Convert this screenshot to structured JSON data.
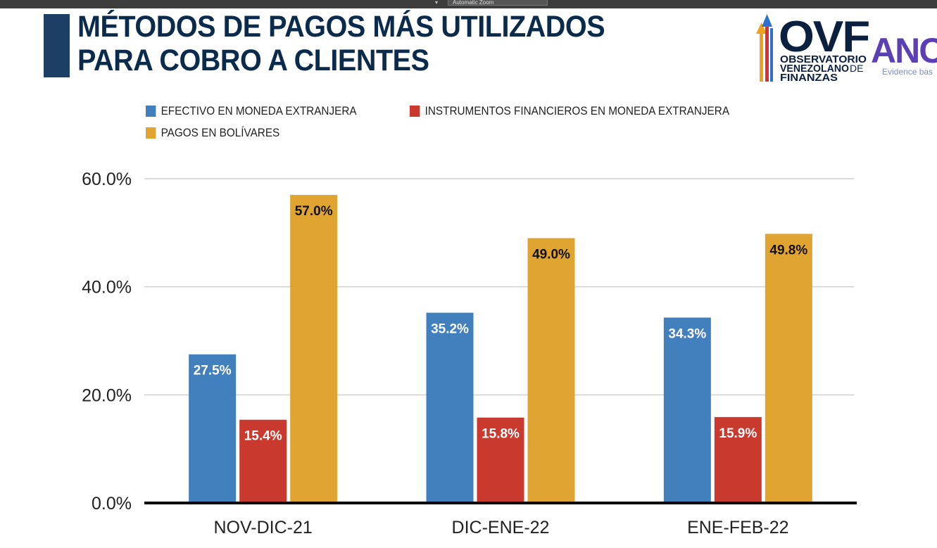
{
  "toolbar": {
    "zoom_label": "Automatic Zoom"
  },
  "header": {
    "title_line1": "MÉTODOS DE PAGOS MÁS UTILIZADOS",
    "title_line2": "PARA COBRO A CLIENTES"
  },
  "logo": {
    "ovf_text": "OVF",
    "line1": "OBSERVATORIO",
    "line2": "VENEZOLANO",
    "line2_suffix": "DE",
    "line3": "FINANZAS",
    "partner_text": "ANC",
    "partner_tagline": "Evidence bas",
    "colors": {
      "navy": "#0b1f3f",
      "blue": "#2f6fd0",
      "orange": "#f0a020",
      "red": "#d83030",
      "purple": "#5b3fb5",
      "gray": "#7a90c0"
    }
  },
  "chart_data": {
    "type": "bar",
    "categories": [
      "NOV-DIC-21",
      "DIC-ENE-22",
      "ENE-FEB-22"
    ],
    "series": [
      {
        "name": "EFECTIVO EN MONEDA EXTRANJERA",
        "color": "#4180bd",
        "values": [
          27.5,
          35.2,
          34.3
        ],
        "labels": [
          "27.5%",
          "35.2%",
          "34.3%"
        ],
        "label_color": "#ffffff"
      },
      {
        "name": "INSTRUMENTOS FINANCIEROS EN MONEDA EXTRANJERA",
        "color": "#c9392e",
        "values": [
          15.4,
          15.8,
          15.9
        ],
        "labels": [
          "15.4%",
          "15.8%",
          "15.9%"
        ],
        "label_color": "#ffffff"
      },
      {
        "name": "PAGOS EN BOLÍVARES",
        "color": "#e0a430",
        "values": [
          57.0,
          49.0,
          49.8
        ],
        "labels": [
          "57.0%",
          "49.0%",
          "49.8%"
        ],
        "label_color": "#111111"
      }
    ],
    "y_ticks": [
      0,
      20,
      40,
      60
    ],
    "y_tick_labels": [
      "0.0%",
      "20.0%",
      "40.0%",
      "60.0%"
    ],
    "ylim": [
      0,
      60
    ],
    "grid": true,
    "legend_position": "top"
  }
}
